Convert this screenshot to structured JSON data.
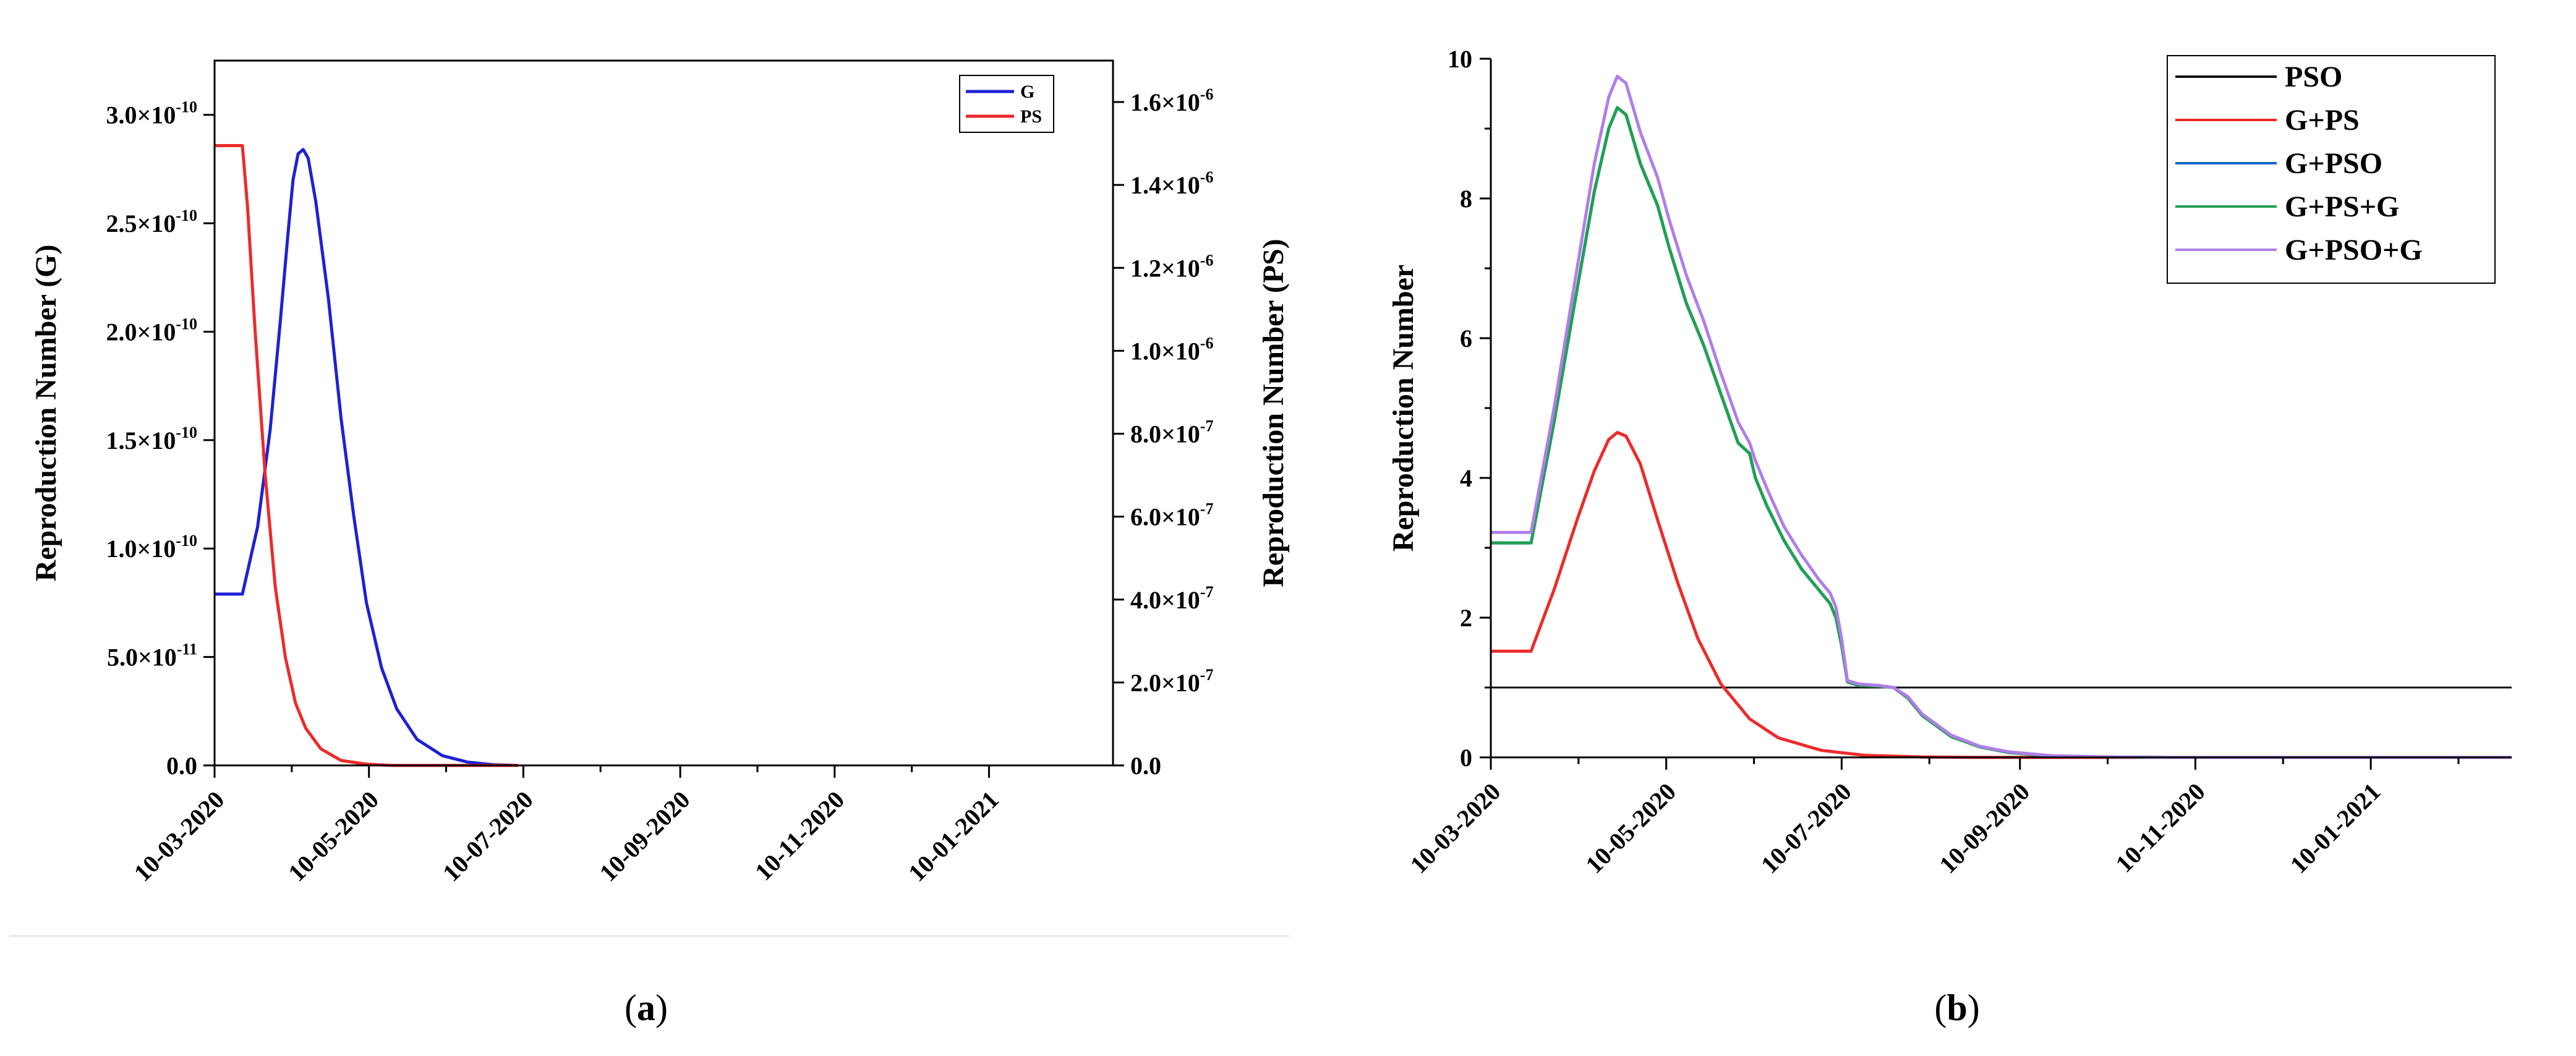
{
  "chart_data": [
    {
      "panel": "a",
      "caption": {
        "open": "(",
        "letter": "a",
        "close": ")"
      },
      "type": "line",
      "x_start": "2020-03-10",
      "x_end": "2021-02-28",
      "x_ticks": [
        "10-03-2020",
        "10-05-2020",
        "10-07-2020",
        "10-09-2020",
        "10-11-2020",
        "10-01-2021"
      ],
      "ylabel_left": "Reproduction Number (G)",
      "ylabel_right": "Reproduction Number (PS)",
      "ylim_left": [
        0,
        3.25e-10
      ],
      "ylim_right": [
        0,
        1.7e-06
      ],
      "y_ticks_left": [
        {
          "v": 0,
          "m": "0.0",
          "e": ""
        },
        {
          "v": 5e-11,
          "m": "5.0×10",
          "e": "-11"
        },
        {
          "v": 1e-10,
          "m": "1.0×10",
          "e": "-10"
        },
        {
          "v": 1.5e-10,
          "m": "1.5×10",
          "e": "-10"
        },
        {
          "v": 2e-10,
          "m": "2.0×10",
          "e": "-10"
        },
        {
          "v": 2.5e-10,
          "m": "2.5×10",
          "e": "-10"
        },
        {
          "v": 3e-10,
          "m": "3.0×10",
          "e": "-10"
        }
      ],
      "y_ticks_right": [
        {
          "v": 0,
          "m": "0.0",
          "e": ""
        },
        {
          "v": 2e-07,
          "m": "2.0×10",
          "e": "-7"
        },
        {
          "v": 4e-07,
          "m": "4.0×10",
          "e": "-7"
        },
        {
          "v": 6e-07,
          "m": "6.0×10",
          "e": "-7"
        },
        {
          "v": 8e-07,
          "m": "8.0×10",
          "e": "-7"
        },
        {
          "v": 1e-06,
          "m": "1.0×10",
          "e": "-6"
        },
        {
          "v": 1.2e-06,
          "m": "1.2×10",
          "e": "-6"
        },
        {
          "v": 1.4e-06,
          "m": "1.4×10",
          "e": "-6"
        },
        {
          "v": 1.6e-06,
          "m": "1.6×10",
          "e": "-6"
        }
      ],
      "legend_position": "top-right",
      "series": [
        {
          "name": "G",
          "axis": "left",
          "color": "#1f1fd6",
          "points": [
            [
              0,
              7.9e-11
            ],
            [
              11,
              7.9e-11
            ],
            [
              17,
              1.1e-10
            ],
            [
              22,
              1.55e-10
            ],
            [
              26,
              2.05e-10
            ],
            [
              29,
              2.45e-10
            ],
            [
              31,
              2.7e-10
            ],
            [
              33,
              2.82e-10
            ],
            [
              35,
              2.84e-10
            ],
            [
              37,
              2.8e-10
            ],
            [
              40,
              2.6e-10
            ],
            [
              45,
              2.15e-10
            ],
            [
              50,
              1.6e-10
            ],
            [
              55,
              1.15e-10
            ],
            [
              60,
              7.5e-11
            ],
            [
              66,
              4.5e-11
            ],
            [
              72,
              2.6e-11
            ],
            [
              80,
              1.2e-11
            ],
            [
              90,
              4.5e-12
            ],
            [
              100,
              1.5e-12
            ],
            [
              110,
              3e-13
            ],
            [
              120,
              0
            ]
          ]
        },
        {
          "name": "PS",
          "axis": "right",
          "color": "#ee2a2a",
          "points": [
            [
              0,
              1.495e-06
            ],
            [
              11,
              1.495e-06
            ],
            [
              13,
              1.35e-06
            ],
            [
              16,
              1.05e-06
            ],
            [
              20,
              7e-07
            ],
            [
              24,
              4.3e-07
            ],
            [
              28,
              2.6e-07
            ],
            [
              32,
              1.5e-07
            ],
            [
              36,
              9e-08
            ],
            [
              42,
              4e-08
            ],
            [
              50,
              1.2e-08
            ],
            [
              60,
              3e-09
            ],
            [
              70,
              0
            ],
            [
              120,
              0
            ]
          ]
        }
      ]
    },
    {
      "panel": "b",
      "caption": {
        "open": "(",
        "letter": "b",
        "close": ")"
      },
      "type": "line",
      "x_start": "2020-03-10",
      "x_end": "2021-02-28",
      "x_ticks": [
        "10-03-2020",
        "10-05-2020",
        "10-07-2020",
        "10-09-2020",
        "10-11-2020",
        "10-01-2021"
      ],
      "ylabel": "Reproduction Number",
      "ylim": [
        0,
        10
      ],
      "y_ticks": [
        0,
        2,
        4,
        6,
        8,
        10
      ],
      "legend_position": "top-right",
      "series": [
        {
          "name": "PSO",
          "color": "#111111",
          "points": [
            [
              0,
              1.0
            ],
            [
              355,
              1.0
            ]
          ]
        },
        {
          "name": "G+PS",
          "color": "#ee2a2a",
          "points": [
            [
              0,
              1.52
            ],
            [
              14,
              1.52
            ],
            [
              22,
              2.4
            ],
            [
              30,
              3.4
            ],
            [
              36,
              4.1
            ],
            [
              41,
              4.55
            ],
            [
              44,
              4.65
            ],
            [
              47,
              4.6
            ],
            [
              52,
              4.2
            ],
            [
              58,
              3.4
            ],
            [
              65,
              2.5
            ],
            [
              72,
              1.7
            ],
            [
              80,
              1.05
            ],
            [
              90,
              0.55
            ],
            [
              100,
              0.28
            ],
            [
              115,
              0.1
            ],
            [
              130,
              0.03
            ],
            [
              150,
              0.005
            ],
            [
              170,
              0
            ],
            [
              355,
              0
            ]
          ]
        },
        {
          "name": "G+PSO",
          "color": "#1466c8",
          "points": [
            [
              0,
              3.07
            ],
            [
              14,
              3.07
            ],
            [
              22,
              4.8
            ],
            [
              30,
              6.7
            ],
            [
              36,
              8.1
            ],
            [
              41,
              9.0
            ],
            [
              44,
              9.3
            ],
            [
              47,
              9.2
            ],
            [
              52,
              8.5
            ],
            [
              58,
              7.9
            ],
            [
              62,
              7.3
            ],
            [
              68,
              6.5
            ],
            [
              74,
              5.9
            ],
            [
              80,
              5.2
            ],
            [
              86,
              4.5
            ],
            [
              90,
              4.35
            ],
            [
              92,
              4.0
            ],
            [
              96,
              3.6
            ],
            [
              102,
              3.1
            ],
            [
              108,
              2.7
            ],
            [
              114,
              2.4
            ],
            [
              118,
              2.2
            ],
            [
              120,
              2.0
            ],
            [
              122,
              1.6
            ],
            [
              124,
              1.08
            ],
            [
              128,
              1.03
            ],
            [
              135,
              1.02
            ],
            [
              140,
              1.0
            ],
            [
              145,
              0.85
            ],
            [
              150,
              0.6
            ],
            [
              160,
              0.3
            ],
            [
              170,
              0.15
            ],
            [
              180,
              0.07
            ],
            [
              195,
              0.02
            ],
            [
              215,
              0.005
            ],
            [
              235,
              0
            ],
            [
              355,
              0
            ]
          ]
        },
        {
          "name": "G+PS+G",
          "color": "#22a055",
          "points": [
            [
              0,
              3.07
            ],
            [
              14,
              3.07
            ],
            [
              22,
              4.8
            ],
            [
              30,
              6.7
            ],
            [
              36,
              8.1
            ],
            [
              41,
              9.0
            ],
            [
              44,
              9.3
            ],
            [
              47,
              9.2
            ],
            [
              52,
              8.5
            ],
            [
              58,
              7.9
            ],
            [
              62,
              7.3
            ],
            [
              68,
              6.5
            ],
            [
              74,
              5.9
            ],
            [
              80,
              5.2
            ],
            [
              86,
              4.5
            ],
            [
              90,
              4.35
            ],
            [
              92,
              4.0
            ],
            [
              96,
              3.6
            ],
            [
              102,
              3.1
            ],
            [
              108,
              2.7
            ],
            [
              114,
              2.4
            ],
            [
              118,
              2.2
            ],
            [
              120,
              2.0
            ],
            [
              122,
              1.6
            ],
            [
              124,
              1.08
            ],
            [
              128,
              1.03
            ],
            [
              135,
              1.02
            ],
            [
              140,
              1.0
            ],
            [
              145,
              0.85
            ],
            [
              150,
              0.6
            ],
            [
              160,
              0.3
            ],
            [
              170,
              0.15
            ],
            [
              180,
              0.07
            ],
            [
              195,
              0.02
            ],
            [
              215,
              0.005
            ],
            [
              235,
              0
            ],
            [
              355,
              0
            ]
          ]
        },
        {
          "name": "G+PSO+G",
          "color": "#b07ee8",
          "points": [
            [
              0,
              3.22
            ],
            [
              14,
              3.22
            ],
            [
              22,
              5.0
            ],
            [
              30,
              7.0
            ],
            [
              36,
              8.5
            ],
            [
              41,
              9.45
            ],
            [
              44,
              9.75
            ],
            [
              47,
              9.65
            ],
            [
              52,
              8.95
            ],
            [
              58,
              8.3
            ],
            [
              62,
              7.7
            ],
            [
              68,
              6.9
            ],
            [
              74,
              6.25
            ],
            [
              80,
              5.5
            ],
            [
              86,
              4.8
            ],
            [
              90,
              4.5
            ],
            [
              92,
              4.25
            ],
            [
              96,
              3.85
            ],
            [
              102,
              3.3
            ],
            [
              108,
              2.9
            ],
            [
              114,
              2.55
            ],
            [
              118,
              2.35
            ],
            [
              120,
              2.15
            ],
            [
              122,
              1.7
            ],
            [
              124,
              1.1
            ],
            [
              128,
              1.05
            ],
            [
              135,
              1.03
            ],
            [
              140,
              1.0
            ],
            [
              145,
              0.87
            ],
            [
              150,
              0.62
            ],
            [
              160,
              0.32
            ],
            [
              170,
              0.16
            ],
            [
              180,
              0.08
            ],
            [
              195,
              0.025
            ],
            [
              215,
              0.006
            ],
            [
              235,
              0
            ],
            [
              355,
              0
            ]
          ]
        }
      ]
    }
  ]
}
